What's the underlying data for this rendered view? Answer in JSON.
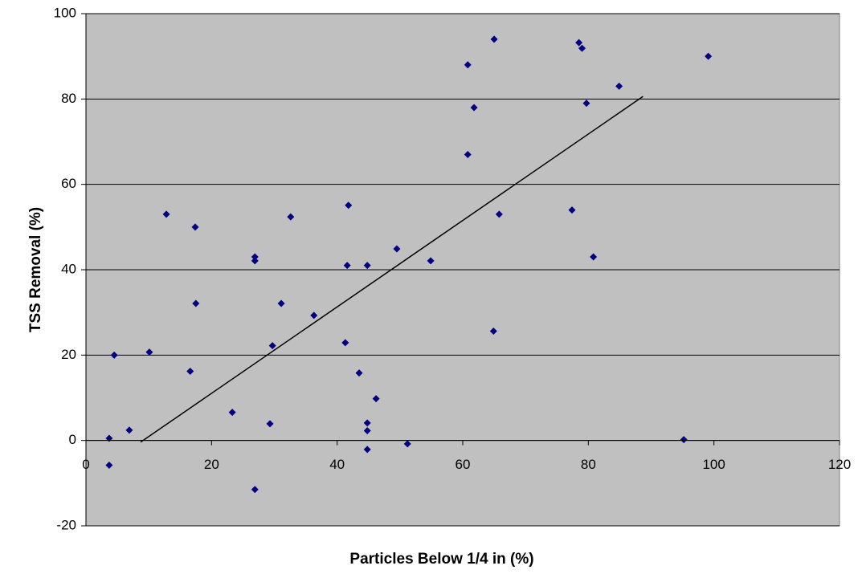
{
  "chart_data": {
    "type": "scatter",
    "x_label": "Particles Below 1/4 in (%)",
    "y_label": "TSS Removal (%)",
    "xlim": [
      0,
      120
    ],
    "xticks": [
      0,
      20,
      40,
      60,
      80,
      100,
      120
    ],
    "ylim": [
      -20,
      100
    ],
    "yticks": [
      -20,
      0,
      20,
      40,
      60,
      80,
      100
    ],
    "grid": true,
    "series": [
      {
        "color": "#000080",
        "x": [
          3.7,
          3.7,
          4.5,
          6.9,
          10.1,
          12.8,
          16.6,
          17.4,
          17.5,
          23.3,
          26.9,
          26.9,
          26.9,
          29.3,
          29.7,
          31.1,
          32.6,
          36.3,
          41.3,
          41.6,
          41.8,
          43.5,
          44.8,
          44.8,
          44.8,
          44.8,
          46.2,
          49.5,
          51.2,
          54.9,
          65,
          78.5,
          79,
          99.1,
          60.8,
          84.9,
          79.7,
          61.8,
          60.8,
          77.4,
          65.8,
          80.8,
          64.9,
          95.2
        ],
        "values": [
          0.5,
          -5.8,
          20,
          2.4,
          20.7,
          53,
          16.2,
          50,
          32.1,
          6.6,
          43,
          42.1,
          -11.5,
          3.9,
          22.2,
          32.1,
          52.4,
          29.3,
          22.9,
          41,
          55.1,
          15.8,
          41,
          4.1,
          2.3,
          -2.1,
          9.8,
          44.9,
          -0.8,
          42.1,
          94,
          93.2,
          91.9,
          90,
          88,
          83,
          79,
          78,
          67,
          54,
          53,
          43,
          25.6,
          0.2
        ]
      }
    ],
    "trendline": {
      "color": "#000000",
      "x": [
        8.7,
        88.7
      ],
      "values": [
        -0.4,
        80.6
      ]
    }
  }
}
